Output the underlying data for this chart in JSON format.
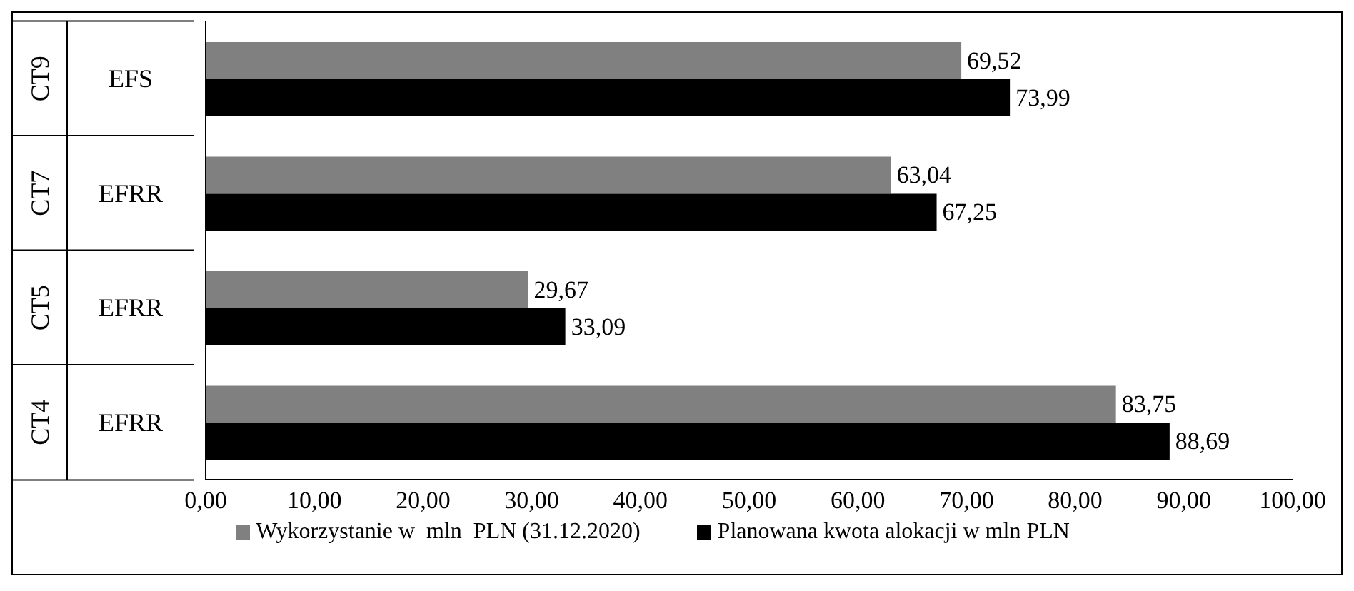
{
  "chart_data": {
    "type": "bar",
    "orientation": "horizontal",
    "categories": [
      "EFS",
      "EFRR",
      "EFRR",
      "EFRR"
    ],
    "annotations": [
      "CT9",
      "CT7",
      "CT5",
      "CT4"
    ],
    "series": [
      {
        "name": "Wykorzystanie w  mln  PLN (31.12.2020)",
        "color": "#808080",
        "values": [
          69.52,
          63.04,
          29.67,
          83.75
        ],
        "value_labels": [
          "69,52",
          "63,04",
          "29,67",
          "83,75"
        ]
      },
      {
        "name": "Planowana kwota alokacji w mln PLN",
        "color": "#000000",
        "values": [
          73.99,
          67.25,
          33.09,
          88.69
        ],
        "value_labels": [
          "73,99",
          "67,25",
          "33,09",
          "88,69"
        ]
      }
    ],
    "xlim": [
      0,
      100
    ],
    "xticks": [
      {
        "value": 0,
        "label": "0,00"
      },
      {
        "value": 10,
        "label": "10,00"
      },
      {
        "value": 20,
        "label": "20,00"
      },
      {
        "value": 30,
        "label": "30,00"
      },
      {
        "value": 40,
        "label": "40,00"
      },
      {
        "value": 50,
        "label": "50,00"
      },
      {
        "value": 60,
        "label": "60,00"
      },
      {
        "value": 70,
        "label": "70,00"
      },
      {
        "value": 80,
        "label": "80,00"
      },
      {
        "value": 90,
        "label": "90,00"
      },
      {
        "value": 100,
        "label": "100,00"
      }
    ],
    "grid": false,
    "legend": "bottom"
  }
}
